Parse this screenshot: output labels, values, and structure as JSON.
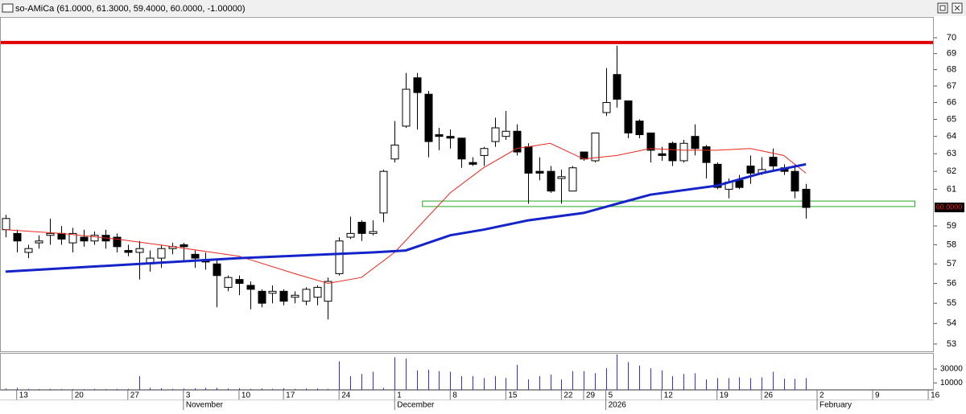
{
  "chart_data": {
    "type": "candlestick",
    "title": "so-AMiCa (61.0000, 61.3000, 59.4000, 60.0000, -1.00000)",
    "ylog": true,
    "ylim": [
      52.65,
      71.34
    ],
    "yticks": [
      53,
      54,
      55,
      56,
      57,
      58,
      59,
      61,
      62,
      63,
      64,
      65,
      66,
      67,
      68,
      69,
      70
    ],
    "xlim": [
      -0.5,
      83.5
    ],
    "xticks": [
      {
        "value": 1,
        "label": "13"
      },
      {
        "value": 6,
        "label": "20"
      },
      {
        "value": 11,
        "label": "27"
      },
      {
        "value": 16,
        "label": "3"
      },
      {
        "value": 21,
        "label": "10"
      },
      {
        "value": 25,
        "label": "17"
      },
      {
        "value": 30,
        "label": "24"
      },
      {
        "value": 35,
        "label": "1"
      },
      {
        "value": 40,
        "label": "8"
      },
      {
        "value": 45,
        "label": "15"
      },
      {
        "value": 50,
        "label": "22"
      },
      {
        "value": 52,
        "label": "29"
      },
      {
        "value": 54,
        "label": "5"
      },
      {
        "value": 59,
        "label": "12"
      },
      {
        "value": 64,
        "label": "19"
      },
      {
        "value": 68,
        "label": "26"
      },
      {
        "value": 73,
        "label": "2"
      },
      {
        "value": 78,
        "label": "9"
      },
      {
        "value": 83,
        "label": "16"
      }
    ],
    "xticks2": [
      {
        "value": 16,
        "label": "November"
      },
      {
        "value": 35,
        "label": "December"
      },
      {
        "value": 54,
        "label": "2026"
      },
      {
        "value": 73,
        "label": "February"
      }
    ],
    "x": [
      0,
      1,
      2,
      3,
      4,
      5,
      6,
      7,
      8,
      9,
      10,
      11,
      12,
      13,
      14,
      15,
      16,
      17,
      18,
      19,
      20,
      21,
      22,
      23,
      24,
      25,
      26,
      27,
      28,
      29,
      30,
      31,
      32,
      33,
      34,
      35,
      36,
      37,
      38,
      39,
      40,
      41,
      42,
      43,
      44,
      45,
      46,
      47,
      48,
      49,
      50,
      51,
      52,
      53,
      54,
      55,
      56,
      57,
      58,
      59,
      60,
      61,
      62,
      63,
      64,
      65,
      66,
      67,
      68,
      69,
      70,
      71,
      72
    ],
    "open": [
      58.8,
      58.6,
      57.6,
      58.1,
      58.5,
      58.6,
      58.1,
      58.4,
      58.2,
      58.5,
      58.4,
      57.7,
      57.6,
      57.0,
      57.3,
      57.8,
      58.0,
      57.5,
      57.2,
      57.0,
      55.8,
      56.2,
      55.9,
      55.6,
      55.5,
      55.6,
      55.3,
      55.1,
      55.3,
      55.1,
      56.5,
      58.4,
      59.2,
      58.6,
      59.7,
      62.7,
      64.6,
      67.5,
      66.5,
      64.1,
      64.0,
      63.9,
      62.5,
      62.9,
      63.7,
      64.0,
      64.3,
      63.4,
      62.0,
      62.0,
      61.6,
      60.9,
      63.1,
      62.6,
      65.4,
      67.7,
      66.1,
      64.9,
      64.2,
      63.0,
      63.6,
      62.6,
      64.0,
      63.4,
      62.4,
      61.0,
      61.5,
      62.3,
      61.9,
      62.8,
      62.2,
      62.0,
      61.0
    ],
    "high": [
      59.6,
      58.8,
      58.0,
      58.5,
      59.4,
      59.0,
      58.9,
      58.8,
      58.7,
      58.8,
      58.6,
      58.0,
      58.2,
      57.7,
      58.0,
      58.1,
      58.1,
      57.7,
      57.6,
      57.2,
      56.4,
      56.4,
      56.1,
      55.7,
      55.9,
      55.7,
      55.6,
      55.8,
      55.9,
      56.3,
      58.4,
      59.5,
      59.3,
      59.3,
      62.1,
      64.9,
      67.8,
      67.8,
      66.7,
      64.5,
      64.4,
      63.9,
      62.8,
      63.4,
      65.1,
      65.5,
      64.7,
      63.6,
      62.8,
      62.3,
      62.1,
      62.3,
      63.1,
      64.2,
      68.1,
      69.5,
      66.1,
      65.0,
      64.2,
      63.4,
      63.7,
      63.8,
      64.7,
      63.5,
      62.5,
      61.6,
      61.8,
      62.9,
      62.8,
      63.3,
      62.4,
      62.4,
      61.3
    ],
    "low": [
      58.4,
      57.6,
      57.3,
      57.8,
      58.0,
      58.0,
      57.6,
      57.9,
      58.0,
      57.8,
      57.6,
      57.4,
      56.2,
      56.6,
      56.8,
      57.5,
      57.1,
      56.8,
      56.7,
      54.8,
      55.6,
      55.4,
      54.7,
      54.8,
      55.0,
      54.9,
      55.0,
      54.9,
      54.9,
      54.2,
      56.4,
      58.3,
      58.2,
      58.5,
      59.2,
      62.5,
      64.5,
      64.4,
      62.8,
      63.2,
      63.3,
      62.2,
      62.3,
      62.3,
      63.4,
      63.8,
      62.9,
      60.2,
      61.5,
      60.8,
      60.2,
      60.9,
      62.6,
      62.5,
      65.2,
      65.7,
      63.9,
      63.9,
      62.5,
      62.6,
      62.3,
      62.5,
      62.9,
      61.6,
      61.0,
      60.5,
      61.0,
      61.3,
      61.8,
      62.1,
      61.8,
      60.5,
      59.4
    ],
    "close": [
      59.4,
      58.2,
      57.8,
      58.2,
      58.6,
      58.3,
      58.6,
      58.2,
      58.5,
      58.2,
      57.9,
      57.6,
      57.8,
      57.3,
      57.8,
      57.9,
      57.9,
      57.3,
      57.1,
      56.4,
      56.3,
      56.0,
      55.7,
      55.0,
      55.6,
      55.1,
      55.4,
      55.7,
      55.8,
      56.1,
      58.2,
      58.6,
      58.6,
      58.7,
      62.0,
      63.5,
      66.8,
      66.6,
      63.7,
      64.0,
      63.9,
      62.7,
      62.4,
      63.3,
      64.5,
      64.3,
      63.1,
      61.9,
      61.9,
      60.9,
      61.7,
      62.2,
      62.7,
      64.2,
      66.0,
      66.2,
      64.2,
      64.1,
      63.2,
      62.9,
      62.6,
      63.6,
      63.3,
      62.5,
      61.1,
      61.4,
      61.1,
      61.9,
      62.1,
      62.3,
      62.0,
      60.9,
      60.0
    ],
    "series": [
      {
        "color": "#e8281e",
        "x": [
          0,
          5,
          10,
          15,
          21,
          26,
          29,
          32,
          35,
          38,
          40,
          43,
          46,
          49,
          52,
          55,
          58,
          61,
          64,
          67,
          70,
          72
        ],
        "values": [
          58.8,
          58.6,
          58.3,
          57.9,
          57.4,
          56.5,
          56.0,
          56.3,
          57.6,
          59.5,
          60.8,
          62.2,
          63.3,
          63.6,
          62.7,
          62.9,
          63.3,
          63.2,
          63.2,
          63.3,
          62.9,
          61.9
        ]
      },
      {
        "color": "#1424c8",
        "x": [
          0,
          21,
          33,
          36,
          40,
          43,
          47,
          52,
          55,
          58,
          64,
          68,
          72
        ],
        "values": [
          56.6,
          57.3,
          57.6,
          57.7,
          58.5,
          58.8,
          59.3,
          59.7,
          60.2,
          60.7,
          61.2,
          61.9,
          62.4
        ]
      }
    ],
    "hline": {
      "value": 69.7,
      "color": "#e00000"
    },
    "zone": {
      "x": [
        37.5,
        81.8
      ],
      "y": [
        60.05,
        60.35
      ],
      "color": "#22aa22"
    },
    "last_price": {
      "value": 60,
      "label": "60.0000"
    },
    "volume": {
      "color": "#3030e0",
      "ylim": [
        0,
        52000
      ],
      "yticks": [
        10000,
        30000
      ],
      "values": [
        2000,
        3000,
        1500,
        1000,
        1500,
        1000,
        1200,
        1000,
        1500,
        1000,
        1200,
        1500,
        20000,
        3000,
        2500,
        1500,
        2000,
        2500,
        3000,
        3000,
        2000,
        2500,
        1500,
        2000,
        1500,
        2500,
        1500,
        2000,
        2000,
        1500,
        41000,
        20000,
        23000,
        26000,
        3000,
        47000,
        45000,
        28000,
        29000,
        27000,
        26000,
        20000,
        20000,
        17000,
        20000,
        17000,
        36000,
        15000,
        20000,
        22000,
        15000,
        27000,
        27000,
        24000,
        31000,
        51000,
        40000,
        35000,
        31000,
        28000,
        20000,
        23000,
        24000,
        15000,
        17000,
        17000,
        18000,
        17000,
        18000,
        26000,
        16000,
        16000,
        17000
      ]
    }
  }
}
